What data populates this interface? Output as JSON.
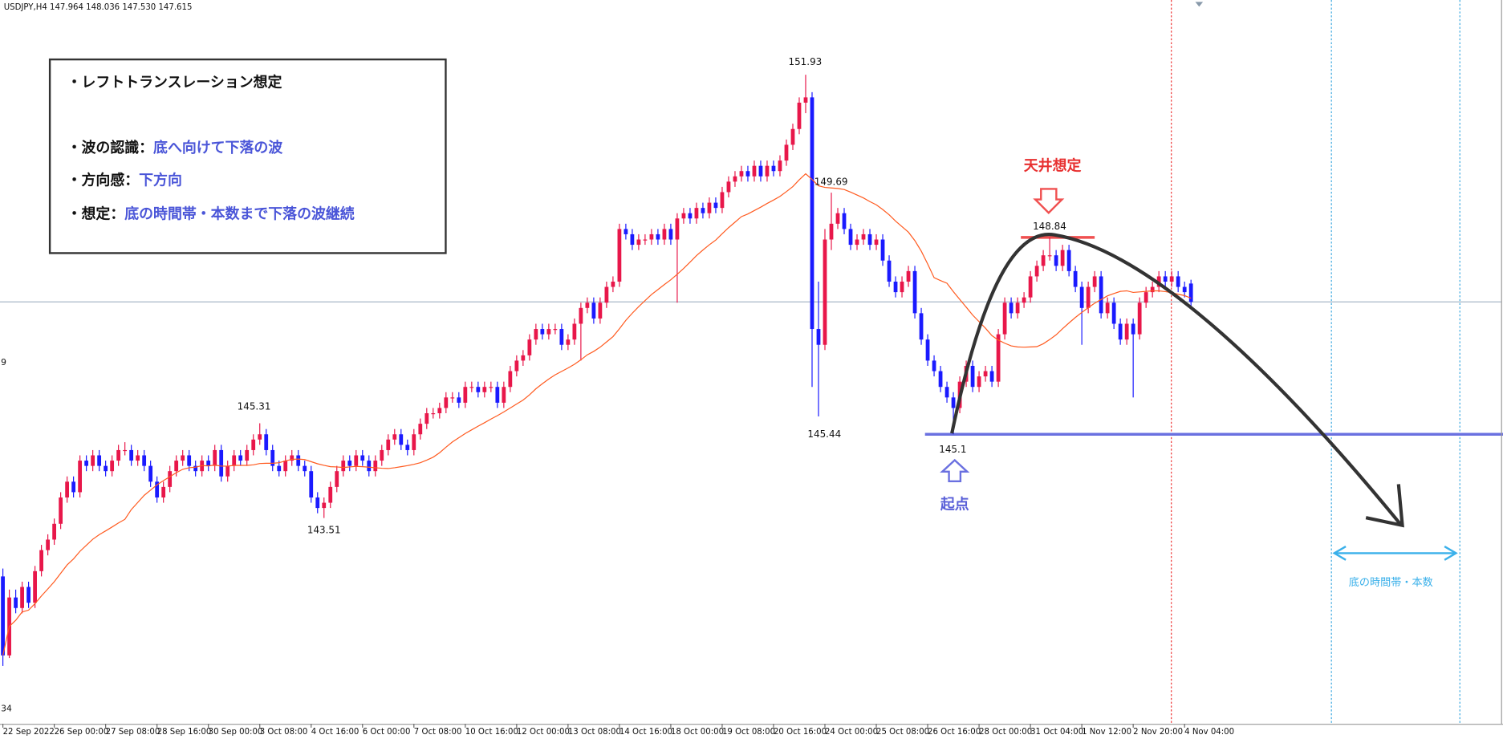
{
  "chart_data": {
    "type": "candlestick",
    "header": "USDJPY,H4  147.964 148.036 147.530 147.615",
    "up_color": "#e8174a",
    "down_color": "#1a1aff",
    "ma_color": "#ff5a1f",
    "ylim": [
      139.6,
      153.35
    ],
    "xticks": [
      {
        "value": 0,
        "label": "22 Sep 2022"
      },
      {
        "value": 8,
        "label": "26 Sep 00:00"
      },
      {
        "value": 16,
        "label": "27 Sep 08:00"
      },
      {
        "value": 24,
        "label": "28 Sep 16:00"
      },
      {
        "value": 32,
        "label": "30 Sep 00:00"
      },
      {
        "value": 40,
        "label": "3 Oct 08:00"
      },
      {
        "value": 48,
        "label": "4 Oct 16:00"
      },
      {
        "value": 56,
        "label": "6 Oct 00:00"
      },
      {
        "value": 64,
        "label": "7 Oct 08:00"
      },
      {
        "value": 72,
        "label": "10 Oct 16:00"
      },
      {
        "value": 80,
        "label": "12 Oct 00:00"
      },
      {
        "value": 88,
        "label": "13 Oct 08:00"
      },
      {
        "value": 96,
        "label": "14 Oct 16:00"
      },
      {
        "value": 104,
        "label": "18 Oct 00:00"
      },
      {
        "value": 112,
        "label": "19 Oct 08:00"
      },
      {
        "value": 120,
        "label": "20 Oct 16:00"
      },
      {
        "value": 128,
        "label": "24 Oct 00:00"
      },
      {
        "value": 136,
        "label": "25 Oct 08:00"
      },
      {
        "value": 144,
        "label": "26 Oct 16:00"
      },
      {
        "value": 152,
        "label": "28 Oct 00:00"
      },
      {
        "value": 160,
        "label": "31 Oct 04:00"
      },
      {
        "value": 168,
        "label": "1 Nov 12:00"
      },
      {
        "value": 176,
        "label": "2 Nov 20:00"
      },
      {
        "value": 184,
        "label": "4 Nov 04:00"
      }
    ],
    "ohlc": [
      [
        142.4,
        142.55,
        140.7,
        140.9
      ],
      [
        140.9,
        142.15,
        140.85,
        142.0
      ],
      [
        142.0,
        142.15,
        141.7,
        141.8
      ],
      [
        141.8,
        142.3,
        141.7,
        142.2
      ],
      [
        142.2,
        142.3,
        141.8,
        141.9
      ],
      [
        141.9,
        142.6,
        141.8,
        142.5
      ],
      [
        142.5,
        143.0,
        142.4,
        142.9
      ],
      [
        142.9,
        143.2,
        142.8,
        143.1
      ],
      [
        143.1,
        143.5,
        143.0,
        143.4
      ],
      [
        143.4,
        144.0,
        143.3,
        143.9
      ],
      [
        143.9,
        144.3,
        143.8,
        144.2
      ],
      [
        144.2,
        144.3,
        143.9,
        144.0
      ],
      [
        144.0,
        144.7,
        143.9,
        144.6
      ],
      [
        144.6,
        144.7,
        144.4,
        144.5
      ],
      [
        144.5,
        144.8,
        144.4,
        144.7
      ],
      [
        144.7,
        144.8,
        144.4,
        144.5
      ],
      [
        144.5,
        144.6,
        144.3,
        144.4
      ],
      [
        144.4,
        144.7,
        144.3,
        144.6
      ],
      [
        144.6,
        144.9,
        144.5,
        144.8
      ],
      [
        144.8,
        144.95,
        144.7,
        144.8
      ],
      [
        144.8,
        144.9,
        144.5,
        144.6
      ],
      [
        144.6,
        144.8,
        144.5,
        144.7
      ],
      [
        144.7,
        144.8,
        144.4,
        144.5
      ],
      [
        144.5,
        144.6,
        144.1,
        144.2
      ],
      [
        144.2,
        144.3,
        143.8,
        143.9
      ],
      [
        143.9,
        144.2,
        143.8,
        144.1
      ],
      [
        144.1,
        144.5,
        144.0,
        144.4
      ],
      [
        144.4,
        144.7,
        144.3,
        144.6
      ],
      [
        144.6,
        144.8,
        144.5,
        144.7
      ],
      [
        144.7,
        144.8,
        144.4,
        144.5
      ],
      [
        144.5,
        144.6,
        144.3,
        144.4
      ],
      [
        144.4,
        144.7,
        144.3,
        144.6
      ],
      [
        144.6,
        144.7,
        144.4,
        144.5
      ],
      [
        144.5,
        144.9,
        144.4,
        144.8
      ],
      [
        144.8,
        144.9,
        144.2,
        144.3
      ],
      [
        144.3,
        144.6,
        144.2,
        144.5
      ],
      [
        144.5,
        144.8,
        144.4,
        144.7
      ],
      [
        144.7,
        144.8,
        144.5,
        144.6
      ],
      [
        144.6,
        144.9,
        144.5,
        144.8
      ],
      [
        144.8,
        145.1,
        144.7,
        145.0
      ],
      [
        145.0,
        145.31,
        144.9,
        145.1
      ],
      [
        145.1,
        145.2,
        144.7,
        144.8
      ],
      [
        144.8,
        144.9,
        144.4,
        144.5
      ],
      [
        144.5,
        144.6,
        144.3,
        144.4
      ],
      [
        144.4,
        144.7,
        144.3,
        144.6
      ],
      [
        144.6,
        144.8,
        144.5,
        144.7
      ],
      [
        144.7,
        144.8,
        144.4,
        144.5
      ],
      [
        144.5,
        144.6,
        144.3,
        144.4
      ],
      [
        144.4,
        144.5,
        143.8,
        143.9
      ],
      [
        143.9,
        144.0,
        143.6,
        143.7
      ],
      [
        143.7,
        143.9,
        143.51,
        143.8
      ],
      [
        143.8,
        144.2,
        143.7,
        144.1
      ],
      [
        144.1,
        144.5,
        144.0,
        144.4
      ],
      [
        144.4,
        144.7,
        144.3,
        144.6
      ],
      [
        144.6,
        144.7,
        144.4,
        144.5
      ],
      [
        144.5,
        144.8,
        144.4,
        144.7
      ],
      [
        144.7,
        144.8,
        144.5,
        144.6
      ],
      [
        144.6,
        144.7,
        144.3,
        144.4
      ],
      [
        144.4,
        144.7,
        144.3,
        144.6
      ],
      [
        144.6,
        144.9,
        144.5,
        144.8
      ],
      [
        144.8,
        145.1,
        144.7,
        145.0
      ],
      [
        145.0,
        145.2,
        144.9,
        145.1
      ],
      [
        145.1,
        145.2,
        144.8,
        144.9
      ],
      [
        144.9,
        145.0,
        144.7,
        144.8
      ],
      [
        144.8,
        145.2,
        144.7,
        145.1
      ],
      [
        145.1,
        145.4,
        145.0,
        145.3
      ],
      [
        145.3,
        145.6,
        145.2,
        145.5
      ],
      [
        145.5,
        145.6,
        145.4,
        145.5
      ],
      [
        145.5,
        145.7,
        145.4,
        145.6
      ],
      [
        145.6,
        145.9,
        145.5,
        145.8
      ],
      [
        145.8,
        145.9,
        145.7,
        145.8
      ],
      [
        145.8,
        145.9,
        145.6,
        145.7
      ],
      [
        145.7,
        146.1,
        145.6,
        146.0
      ],
      [
        146.0,
        146.1,
        145.9,
        146.0
      ],
      [
        146.0,
        146.1,
        145.8,
        145.9
      ],
      [
        145.9,
        146.1,
        145.8,
        146.0
      ],
      [
        146.0,
        146.1,
        145.9,
        146.0
      ],
      [
        146.0,
        146.1,
        145.6,
        145.7
      ],
      [
        145.7,
        146.1,
        145.6,
        146.0
      ],
      [
        146.0,
        146.4,
        145.9,
        146.3
      ],
      [
        146.3,
        146.6,
        146.2,
        146.5
      ],
      [
        146.5,
        146.7,
        146.4,
        146.6
      ],
      [
        146.6,
        147.0,
        146.5,
        146.9
      ],
      [
        146.9,
        147.2,
        146.8,
        147.1
      ],
      [
        147.1,
        147.2,
        146.9,
        147.0
      ],
      [
        147.0,
        147.2,
        146.9,
        147.1
      ],
      [
        147.1,
        147.2,
        147.0,
        147.1
      ],
      [
        147.1,
        147.2,
        146.7,
        146.8
      ],
      [
        146.8,
        147.0,
        146.7,
        146.9
      ],
      [
        146.9,
        147.3,
        146.8,
        147.2
      ],
      [
        147.2,
        147.6,
        146.5,
        147.5
      ],
      [
        147.5,
        147.7,
        147.4,
        147.6
      ],
      [
        147.6,
        147.7,
        147.2,
        147.3
      ],
      [
        147.3,
        147.7,
        147.2,
        147.6
      ],
      [
        147.6,
        148.0,
        147.5,
        147.9
      ],
      [
        147.9,
        148.1,
        147.8,
        148.0
      ],
      [
        148.0,
        149.1,
        147.9,
        149.0
      ],
      [
        149.0,
        149.1,
        148.8,
        148.9
      ],
      [
        148.9,
        149.0,
        148.6,
        148.7
      ],
      [
        148.7,
        148.9,
        148.6,
        148.8
      ],
      [
        148.8,
        148.9,
        148.7,
        148.8
      ],
      [
        148.8,
        149.0,
        148.7,
        148.9
      ],
      [
        148.9,
        149.0,
        148.7,
        148.8
      ],
      [
        148.8,
        149.1,
        148.7,
        149.0
      ],
      [
        149.0,
        149.1,
        148.7,
        148.8
      ],
      [
        148.8,
        149.3,
        147.6,
        149.2
      ],
      [
        149.2,
        149.4,
        149.1,
        149.3
      ],
      [
        149.3,
        149.4,
        149.1,
        149.2
      ],
      [
        149.2,
        149.5,
        149.1,
        149.4
      ],
      [
        149.4,
        149.5,
        149.2,
        149.3
      ],
      [
        149.3,
        149.6,
        149.2,
        149.5
      ],
      [
        149.5,
        149.6,
        149.3,
        149.4
      ],
      [
        149.4,
        149.8,
        149.3,
        149.7
      ],
      [
        149.7,
        150.0,
        149.6,
        149.9
      ],
      [
        149.9,
        150.1,
        149.8,
        150.0
      ],
      [
        150.0,
        150.2,
        149.9,
        150.1
      ],
      [
        150.1,
        150.2,
        149.9,
        150.0
      ],
      [
        150.0,
        150.3,
        149.9,
        150.2
      ],
      [
        150.2,
        150.3,
        149.9,
        150.0
      ],
      [
        150.0,
        150.3,
        149.9,
        150.2
      ],
      [
        150.2,
        150.3,
        150.0,
        150.1
      ],
      [
        150.1,
        150.4,
        150.0,
        150.3
      ],
      [
        150.3,
        150.7,
        150.2,
        150.6
      ],
      [
        150.6,
        151.0,
        150.5,
        150.9
      ],
      [
        150.9,
        151.5,
        150.8,
        151.4
      ],
      [
        151.4,
        151.93,
        151.2,
        151.5
      ],
      [
        151.5,
        151.6,
        146.0,
        147.1
      ],
      [
        147.1,
        148.0,
        145.44,
        146.8
      ],
      [
        146.8,
        149.0,
        146.7,
        148.8
      ],
      [
        148.8,
        149.69,
        148.6,
        149.1
      ],
      [
        149.1,
        149.4,
        149.0,
        149.3
      ],
      [
        149.3,
        149.4,
        148.9,
        149.0
      ],
      [
        149.0,
        149.1,
        148.6,
        148.7
      ],
      [
        148.7,
        148.9,
        148.6,
        148.8
      ],
      [
        148.8,
        149.0,
        148.7,
        148.9
      ],
      [
        148.9,
        149.0,
        148.6,
        148.7
      ],
      [
        148.7,
        148.9,
        148.6,
        148.8
      ],
      [
        148.8,
        148.9,
        148.3,
        148.4
      ],
      [
        148.4,
        148.5,
        147.9,
        148.0
      ],
      [
        148.0,
        148.1,
        147.7,
        147.8
      ],
      [
        147.8,
        148.1,
        147.7,
        148.0
      ],
      [
        148.0,
        148.3,
        147.9,
        148.2
      ],
      [
        148.2,
        148.3,
        147.3,
        147.4
      ],
      [
        147.4,
        147.5,
        146.8,
        146.9
      ],
      [
        146.9,
        147.0,
        146.4,
        146.5
      ],
      [
        146.5,
        146.6,
        146.2,
        146.3
      ],
      [
        146.3,
        146.4,
        145.9,
        146.0
      ],
      [
        146.0,
        146.1,
        145.7,
        145.8
      ],
      [
        145.8,
        145.9,
        145.1,
        145.6
      ],
      [
        145.6,
        146.2,
        145.5,
        146.1
      ],
      [
        146.1,
        146.5,
        146.0,
        146.4
      ],
      [
        146.4,
        146.5,
        145.9,
        146.0
      ],
      [
        146.0,
        146.3,
        145.9,
        146.2
      ],
      [
        146.2,
        146.4,
        146.1,
        146.3
      ],
      [
        146.3,
        146.4,
        146.0,
        146.1
      ],
      [
        146.1,
        147.1,
        146.0,
        147.0
      ],
      [
        147.0,
        147.7,
        146.9,
        147.6
      ],
      [
        147.6,
        147.7,
        147.3,
        147.4
      ],
      [
        147.4,
        147.7,
        147.3,
        147.6
      ],
      [
        147.6,
        147.8,
        147.5,
        147.7
      ],
      [
        147.7,
        148.2,
        147.6,
        148.1
      ],
      [
        148.1,
        148.4,
        148.0,
        148.3
      ],
      [
        148.3,
        148.6,
        148.2,
        148.5
      ],
      [
        148.5,
        148.84,
        148.4,
        148.5
      ],
      [
        148.5,
        148.6,
        148.2,
        148.3
      ],
      [
        148.3,
        148.7,
        148.2,
        148.6
      ],
      [
        148.6,
        148.7,
        148.1,
        148.2
      ],
      [
        148.2,
        148.3,
        147.8,
        147.9
      ],
      [
        147.9,
        148.0,
        146.8,
        147.5
      ],
      [
        147.5,
        148.0,
        147.4,
        147.9
      ],
      [
        147.9,
        148.2,
        147.8,
        148.1
      ],
      [
        148.1,
        148.2,
        147.3,
        147.4
      ],
      [
        147.4,
        147.7,
        147.3,
        147.6
      ],
      [
        147.6,
        147.7,
        147.1,
        147.2
      ],
      [
        147.2,
        147.3,
        146.8,
        146.9
      ],
      [
        146.9,
        147.3,
        146.8,
        147.2
      ],
      [
        147.2,
        147.3,
        145.8,
        147.0
      ],
      [
        147.0,
        147.7,
        146.9,
        147.6
      ],
      [
        147.6,
        147.9,
        147.5,
        147.8
      ],
      [
        147.8,
        148.0,
        147.7,
        147.9
      ],
      [
        147.9,
        148.2,
        147.8,
        148.1
      ],
      [
        148.1,
        148.2,
        147.9,
        148.0
      ],
      [
        148.0,
        148.2,
        147.9,
        148.1
      ],
      [
        148.1,
        148.2,
        147.8,
        147.9
      ],
      [
        147.9,
        148.0,
        147.7,
        147.8
      ],
      [
        147.964,
        148.036,
        147.53,
        147.615
      ]
    ],
    "price_labels": [
      151.93,
      149.69,
      145.44,
      145.31,
      143.51,
      145.1,
      148.84
    ],
    "edge_labels": [
      "9",
      "34"
    ],
    "note": {
      "title": "・レフトトランスレーション想定",
      "lines": [
        {
          "label": "・波の認識：",
          "text": "底へ向けて下落の波"
        },
        {
          "label": "・方向感：",
          "text": "下方向"
        },
        {
          "label": "・想定：",
          "text": "底の時間帯・本数まで下落の波継続"
        }
      ]
    },
    "ceiling_label": "天井想定",
    "start_label": "起点",
    "bottom_window_label": "底の時間帯・本数"
  }
}
